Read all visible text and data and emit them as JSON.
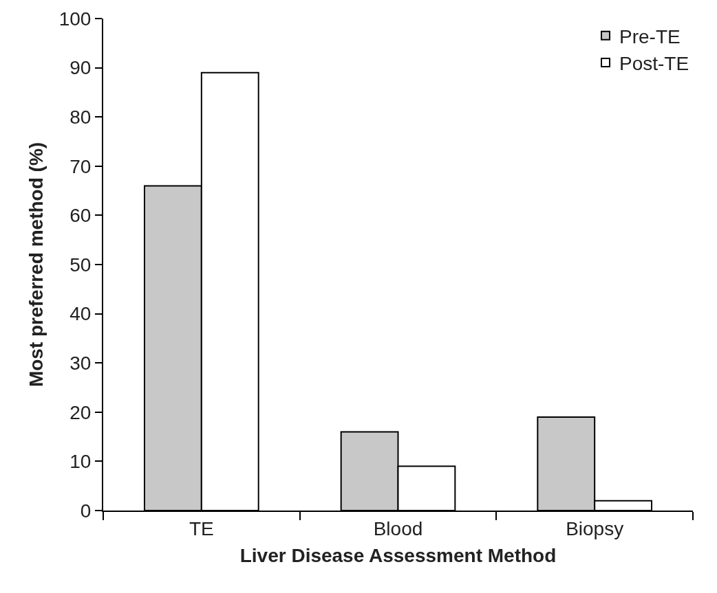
{
  "chart_data": {
    "type": "bar",
    "xlabel": "Liver Disease Assessment Method",
    "ylabel": "Most preferred method (%)",
    "categories": [
      "TE",
      "Blood",
      "Biopsy"
    ],
    "series": [
      {
        "name": "Pre-TE",
        "color": "#c8c8c8",
        "values": [
          66,
          16,
          19
        ]
      },
      {
        "name": "Post-TE",
        "color": "#ffffff",
        "values": [
          89,
          9,
          2
        ]
      }
    ],
    "ylim": [
      0,
      100
    ],
    "yticks": [
      0,
      10,
      20,
      30,
      40,
      50,
      60,
      70,
      80,
      90,
      100
    ],
    "legend": "top right"
  }
}
